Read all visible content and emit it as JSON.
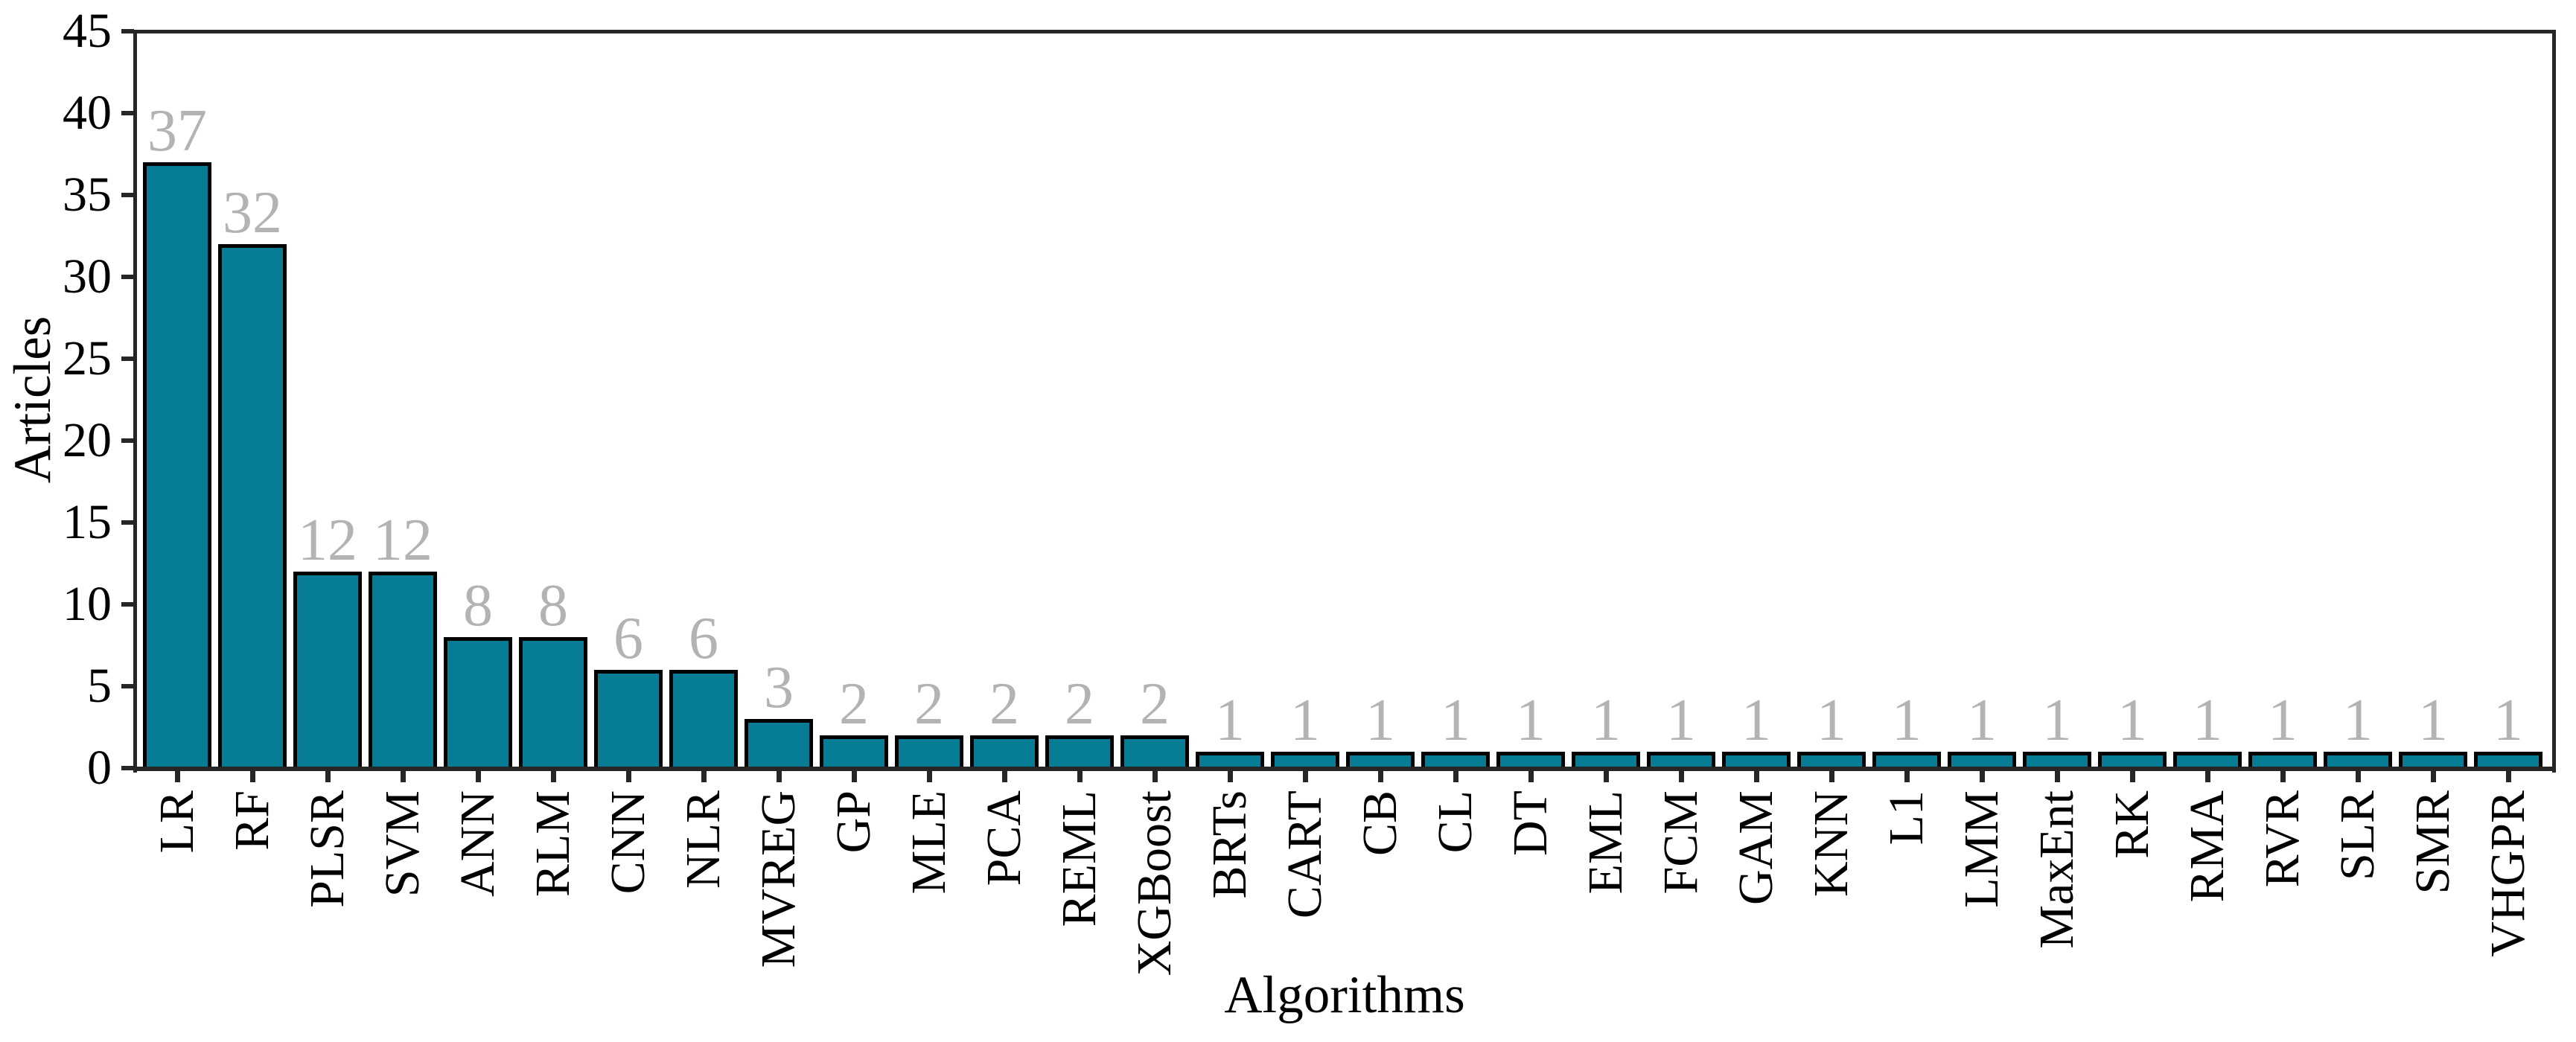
{
  "chart_data": {
    "type": "bar",
    "title": "",
    "xlabel": "Algorithms",
    "ylabel": "Articles",
    "categories": [
      "LR",
      "RF",
      "PLSR",
      "SVM",
      "ANN",
      "RLM",
      "CNN",
      "NLR",
      "MVREG",
      "GP",
      "MLE",
      "PCA",
      "REML",
      "XGBoost",
      "BRTs",
      "CART",
      "CB",
      "CL",
      "DT",
      "EML",
      "FCM",
      "GAM",
      "KNN",
      "L1",
      "LMM",
      "MaxEnt",
      "RK",
      "RMA",
      "RVR",
      "SLR",
      "SMR",
      "VHGPR"
    ],
    "values": [
      37,
      32,
      12,
      12,
      8,
      8,
      6,
      6,
      3,
      2,
      2,
      2,
      2,
      2,
      1,
      1,
      1,
      1,
      1,
      1,
      1,
      1,
      1,
      1,
      1,
      1,
      1,
      1,
      1,
      1,
      1,
      1
    ],
    "bar_value_labels": [
      "37",
      "32",
      "12",
      "12",
      "8",
      "8",
      "6",
      "6",
      "3",
      "2",
      "2",
      "2",
      "2",
      "2",
      "1",
      "1",
      "1",
      "1",
      "1",
      "1",
      "1",
      "1",
      "1",
      "1",
      "1",
      "1",
      "1",
      "1",
      "1",
      "1",
      "1",
      "1"
    ],
    "ylim": [
      0,
      45
    ],
    "yticks": [
      0,
      5,
      10,
      15,
      20,
      25,
      30,
      35,
      40,
      45
    ],
    "grid": false,
    "legend": null,
    "value_labels_position": "above-bars",
    "x_tick_rotation_deg": 90,
    "colors": {
      "bar_fill": "#077c95",
      "bar_edge": "#000000",
      "value_label": "#b3b3b3",
      "axis": "#262626",
      "text": "#000000",
      "background": "#ffffff"
    }
  }
}
